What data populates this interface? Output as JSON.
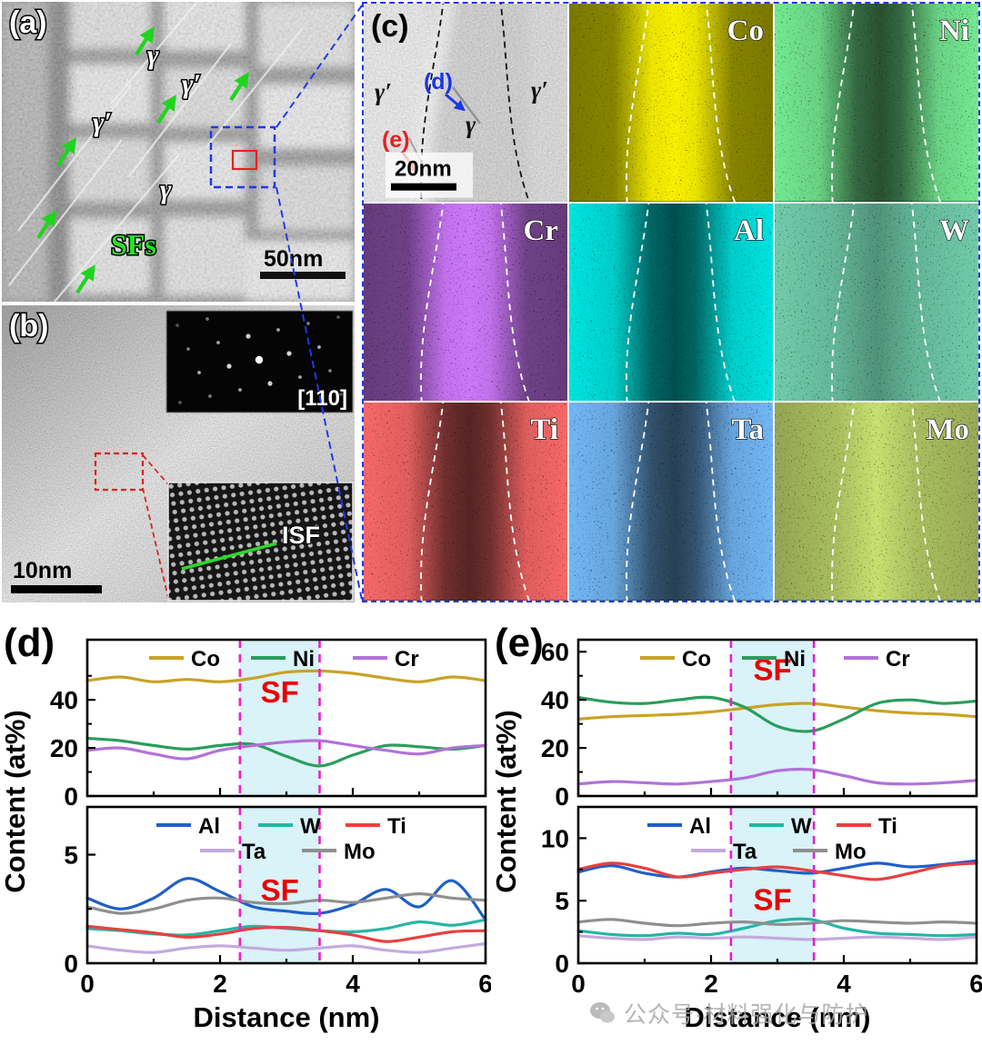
{
  "panel_a": {
    "label": "(a)",
    "annotations": {
      "gamma_top": "γ",
      "gamma_prime_right": "γ′",
      "gamma_prime_left": "γ′",
      "gamma_center": "γ",
      "sfs": "SFs"
    },
    "scale_bar": "50nm"
  },
  "panel_b": {
    "label": "(b)",
    "fft_zone_axis": "[110]",
    "isf_label": "ISF",
    "scale_bar": "10nm"
  },
  "panel_c": {
    "label": "(c)",
    "annotations": {
      "gamma_prime_left": "γ′",
      "d_marker": "(d)",
      "gamma": "γ",
      "gamma_prime_right": "γ′",
      "e_marker": "(e)"
    },
    "scale_bar": "20nm",
    "maps": [
      {
        "element": "Co",
        "bright": "#f0e000",
        "base": "#3a3600",
        "profile": "enriched",
        "seed": 11
      },
      {
        "element": "Ni",
        "bright": "#2ed04a",
        "base": "#06300e",
        "profile": "depleted",
        "seed": 23
      },
      {
        "element": "Cr",
        "bright": "#9a30f0",
        "base": "#20063e",
        "profile": "enriched",
        "seed": 37
      },
      {
        "element": "Al",
        "bright": "#00c8c0",
        "base": "#013434",
        "profile": "depleted",
        "seed": 41
      },
      {
        "element": "W",
        "bright": "#2fae76",
        "base": "#06301e",
        "profile": "slight_depleted",
        "seed": 53
      },
      {
        "element": "Ti",
        "bright": "#f02424",
        "base": "#3a0404",
        "profile": "depleted",
        "seed": 61
      },
      {
        "element": "Ta",
        "bright": "#2c7ae8",
        "base": "#041034",
        "profile": "depleted",
        "seed": 71
      },
      {
        "element": "Mo",
        "bright": "#a8d830",
        "base": "#223204",
        "profile": "slight_enriched",
        "seed": 83
      }
    ]
  },
  "watermark": {
    "text": "公众号·材料强化与防护"
  },
  "chart_data": [
    {
      "id": "d",
      "type": "line",
      "panel_label": "(d)",
      "xlabel": "Distance (nm)",
      "ylabel": "Content (at%)",
      "x": [
        0,
        0.5,
        1,
        1.5,
        2,
        2.5,
        3,
        3.5,
        4,
        4.5,
        5,
        5.5,
        6
      ],
      "x_ticks": [
        0,
        2,
        4,
        6
      ],
      "xlim": [
        0,
        6
      ],
      "sf_region": [
        2.3,
        3.5
      ],
      "sf_label": "SF",
      "subplots": [
        {
          "ylim": [
            0,
            65
          ],
          "y_ticks": [
            0,
            20,
            40
          ],
          "sf_y_frac": 0.4,
          "legend_rows": [
            [
              "Co",
              "Ni",
              "Cr"
            ]
          ],
          "series": [
            {
              "name": "Co",
              "color": "#c9a227",
              "values": [
                48,
                49.5,
                47.5,
                48.5,
                47.5,
                49,
                51.5,
                52,
                51,
                49,
                47.5,
                49.5,
                48
              ]
            },
            {
              "name": "Ni",
              "color": "#2a9d5c",
              "values": [
                24,
                23,
                21,
                19.5,
                21,
                21.5,
                16.5,
                12.5,
                17,
                21,
                20.5,
                19.5,
                21
              ]
            },
            {
              "name": "Cr",
              "color": "#b272d8",
              "values": [
                19,
                20,
                17.5,
                15.5,
                19,
                21,
                22.5,
                23,
                21,
                19,
                17.5,
                20,
                21
              ]
            }
          ]
        },
        {
          "ylim": [
            0,
            7.2
          ],
          "y_ticks": [
            0,
            5
          ],
          "sf_y_frac": 0.6,
          "legend_rows": [
            [
              "Al",
              "W",
              "Ti"
            ],
            [
              "Ta",
              "Mo"
            ]
          ],
          "series": [
            {
              "name": "Al",
              "color": "#1f5fc8",
              "values": [
                3.0,
                2.5,
                3.0,
                3.9,
                3.3,
                2.6,
                2.4,
                2.3,
                2.7,
                3.4,
                2.6,
                3.8,
                2.0
              ]
            },
            {
              "name": "W",
              "color": "#27b5a5",
              "values": [
                1.6,
                1.5,
                1.35,
                1.3,
                1.5,
                1.7,
                1.6,
                1.5,
                1.45,
                1.6,
                1.9,
                1.75,
                2.0
              ]
            },
            {
              "name": "Ti",
              "color": "#e84040",
              "values": [
                1.7,
                1.55,
                1.4,
                1.2,
                1.35,
                1.6,
                1.65,
                1.5,
                1.3,
                1.0,
                1.2,
                1.45,
                1.5
              ]
            },
            {
              "name": "Ta",
              "color": "#c4aade",
              "values": [
                0.8,
                0.6,
                0.5,
                0.7,
                0.8,
                0.7,
                0.6,
                0.7,
                0.8,
                0.6,
                0.5,
                0.7,
                0.9
              ]
            },
            {
              "name": "Mo",
              "color": "#8f8f8f",
              "values": [
                2.6,
                2.3,
                2.5,
                2.9,
                3.0,
                2.8,
                2.75,
                2.9,
                2.8,
                3.0,
                3.2,
                3.0,
                2.9
              ]
            }
          ]
        }
      ]
    },
    {
      "id": "e",
      "type": "line",
      "panel_label": "(e)",
      "xlabel": "Distance (nm)",
      "ylabel": "Content (at%)",
      "x": [
        0,
        0.5,
        1,
        1.5,
        2,
        2.5,
        3,
        3.5,
        4,
        4.5,
        5,
        5.5,
        6
      ],
      "x_ticks": [
        0,
        2,
        4,
        6
      ],
      "xlim": [
        0,
        6
      ],
      "sf_region": [
        2.3,
        3.55
      ],
      "sf_label": "SF",
      "subplots": [
        {
          "ylim": [
            0,
            65
          ],
          "y_ticks": [
            0,
            20,
            40,
            60
          ],
          "sf_y_frac": 0.26,
          "legend_rows": [
            [
              "Co",
              "Ni",
              "Cr"
            ]
          ],
          "series": [
            {
              "name": "Co",
              "color": "#c9a227",
              "values": [
                32,
                33,
                33.5,
                34,
                35,
                36.5,
                38,
                38.5,
                37,
                35.5,
                34.5,
                34,
                33
              ]
            },
            {
              "name": "Ni",
              "color": "#2a9d5c",
              "values": [
                41,
                39,
                38.5,
                40,
                41,
                37,
                29,
                27,
                32,
                38.5,
                40,
                38.5,
                39.5
              ]
            },
            {
              "name": "Cr",
              "color": "#b272d8",
              "values": [
                5,
                6,
                5.5,
                5,
                6,
                7.5,
                10.5,
                11,
                8.5,
                5.5,
                5,
                5.5,
                6.5
              ]
            }
          ]
        },
        {
          "ylim": [
            0,
            12.5
          ],
          "y_ticks": [
            0,
            5,
            10
          ],
          "sf_y_frac": 0.66,
          "legend_rows": [
            [
              "Al",
              "W",
              "Ti"
            ],
            [
              "Ta",
              "Mo"
            ]
          ],
          "series": [
            {
              "name": "Al",
              "color": "#1f5fc8",
              "values": [
                7.3,
                7.8,
                7.2,
                6.9,
                7.3,
                7.6,
                7.4,
                7.2,
                7.6,
                8.0,
                7.7,
                7.9,
                8.2
              ]
            },
            {
              "name": "W",
              "color": "#27b5a5",
              "values": [
                2.6,
                2.3,
                2.2,
                2.4,
                2.3,
                2.8,
                3.4,
                3.5,
                2.8,
                2.4,
                2.3,
                2.2,
                2.3
              ]
            },
            {
              "name": "Ti",
              "color": "#e84040",
              "values": [
                7.5,
                8.0,
                7.6,
                6.9,
                7.2,
                7.5,
                7.7,
                7.4,
                7.0,
                6.7,
                7.2,
                7.8,
                8.0
              ]
            },
            {
              "name": "Ta",
              "color": "#c4aade",
              "values": [
                2.2,
                2.0,
                1.9,
                2.1,
                2.0,
                2.1,
                2.0,
                1.9,
                2.0,
                2.1,
                2.0,
                1.9,
                2.1
              ]
            },
            {
              "name": "Mo",
              "color": "#8f8f8f",
              "values": [
                3.3,
                3.5,
                3.2,
                3.0,
                3.2,
                3.3,
                3.1,
                3.2,
                3.4,
                3.3,
                3.2,
                3.3,
                3.2
              ]
            }
          ]
        }
      ]
    }
  ]
}
